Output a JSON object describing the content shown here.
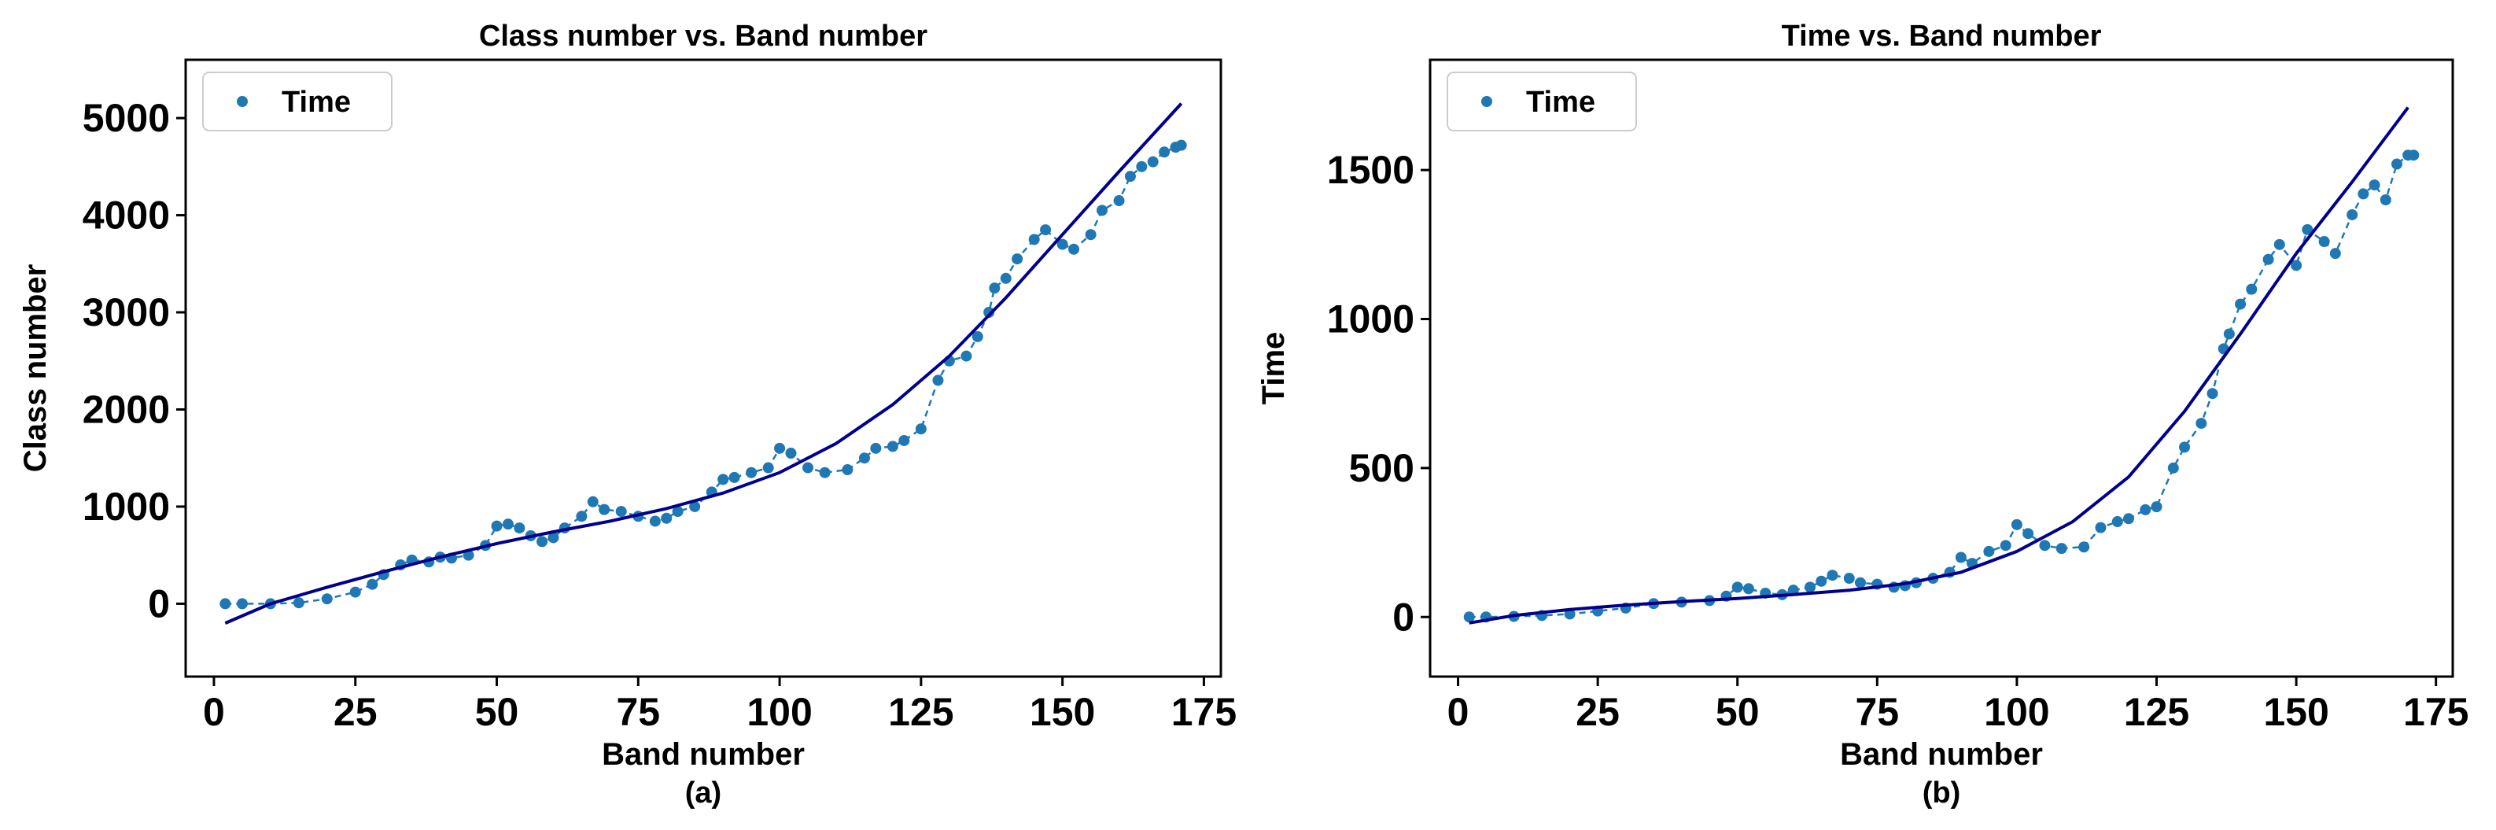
{
  "chart_data": [
    {
      "type": "scatter",
      "title": "Class number vs. Band number",
      "xlabel": "Band number",
      "ylabel": "Class number",
      "caption": "(a)",
      "xlim": [
        -5,
        178
      ],
      "ylim": [
        -750,
        5600
      ],
      "xticks": [
        0,
        25,
        50,
        75,
        100,
        125,
        150,
        175
      ],
      "yticks": [
        0,
        1000,
        2000,
        3000,
        4000,
        5000
      ],
      "legend": {
        "label": "Time",
        "placement": "top-left"
      },
      "colors": {
        "points": "#1f77b4",
        "fit": "#00008b"
      },
      "series": [
        {
          "name": "Time",
          "kind": "scatter",
          "points": [
            [
              2,
              0
            ],
            [
              5,
              0
            ],
            [
              10,
              0
            ],
            [
              15,
              10
            ],
            [
              20,
              50
            ],
            [
              25,
              120
            ],
            [
              28,
              200
            ],
            [
              30,
              300
            ],
            [
              33,
              400
            ],
            [
              35,
              450
            ],
            [
              38,
              430
            ],
            [
              40,
              480
            ],
            [
              42,
              470
            ],
            [
              45,
              500
            ],
            [
              48,
              600
            ],
            [
              50,
              800
            ],
            [
              52,
              820
            ],
            [
              54,
              780
            ],
            [
              56,
              700
            ],
            [
              58,
              640
            ],
            [
              60,
              680
            ],
            [
              62,
              780
            ],
            [
              65,
              900
            ],
            [
              67,
              1050
            ],
            [
              69,
              970
            ],
            [
              72,
              950
            ],
            [
              75,
              900
            ],
            [
              78,
              850
            ],
            [
              80,
              880
            ],
            [
              82,
              950
            ],
            [
              85,
              1000
            ],
            [
              88,
              1150
            ],
            [
              90,
              1280
            ],
            [
              92,
              1300
            ],
            [
              95,
              1350
            ],
            [
              98,
              1400
            ],
            [
              100,
              1600
            ],
            [
              102,
              1550
            ],
            [
              105,
              1400
            ],
            [
              108,
              1350
            ],
            [
              112,
              1380
            ],
            [
              115,
              1500
            ],
            [
              117,
              1600
            ],
            [
              120,
              1620
            ],
            [
              122,
              1680
            ],
            [
              125,
              1800
            ],
            [
              128,
              2300
            ],
            [
              130,
              2500
            ],
            [
              133,
              2550
            ],
            [
              135,
              2750
            ],
            [
              137,
              3000
            ],
            [
              138,
              3250
            ],
            [
              140,
              3350
            ],
            [
              142,
              3550
            ],
            [
              145,
              3750
            ],
            [
              147,
              3850
            ],
            [
              150,
              3700
            ],
            [
              152,
              3650
            ],
            [
              155,
              3800
            ],
            [
              157,
              4050
            ],
            [
              160,
              4150
            ],
            [
              162,
              4400
            ],
            [
              164,
              4500
            ],
            [
              166,
              4550
            ],
            [
              168,
              4650
            ],
            [
              170,
              4700
            ],
            [
              171,
              4720
            ]
          ]
        },
        {
          "name": "",
          "kind": "fit",
          "points": [
            [
              2,
              -200
            ],
            [
              10,
              0
            ],
            [
              20,
              170
            ],
            [
              30,
              330
            ],
            [
              40,
              480
            ],
            [
              50,
              620
            ],
            [
              60,
              740
            ],
            [
              70,
              850
            ],
            [
              80,
              980
            ],
            [
              90,
              1140
            ],
            [
              100,
              1350
            ],
            [
              110,
              1650
            ],
            [
              120,
              2050
            ],
            [
              130,
              2550
            ],
            [
              140,
              3150
            ],
            [
              150,
              3800
            ],
            [
              160,
              4450
            ],
            [
              171,
              5150
            ]
          ]
        }
      ]
    },
    {
      "type": "scatter",
      "title": "Time vs. Band number",
      "xlabel": "Band number",
      "ylabel": "Time",
      "caption": "(b)",
      "xlim": [
        -5,
        178
      ],
      "ylim": [
        -200,
        1870
      ],
      "xticks": [
        0,
        25,
        50,
        75,
        100,
        125,
        150,
        175
      ],
      "yticks": [
        0,
        500,
        1000,
        1500
      ],
      "legend": {
        "label": "Time",
        "placement": "top-left"
      },
      "colors": {
        "points": "#1f77b4",
        "fit": "#00008b"
      },
      "series": [
        {
          "name": "Time",
          "kind": "scatter",
          "points": [
            [
              2,
              0
            ],
            [
              5,
              0
            ],
            [
              10,
              2
            ],
            [
              15,
              5
            ],
            [
              20,
              10
            ],
            [
              25,
              20
            ],
            [
              30,
              30
            ],
            [
              35,
              45
            ],
            [
              40,
              50
            ],
            [
              45,
              55
            ],
            [
              48,
              70
            ],
            [
              50,
              100
            ],
            [
              52,
              95
            ],
            [
              55,
              80
            ],
            [
              58,
              75
            ],
            [
              60,
              90
            ],
            [
              63,
              100
            ],
            [
              65,
              120
            ],
            [
              67,
              140
            ],
            [
              70,
              130
            ],
            [
              72,
              115
            ],
            [
              75,
              110
            ],
            [
              78,
              100
            ],
            [
              80,
              105
            ],
            [
              82,
              115
            ],
            [
              85,
              130
            ],
            [
              88,
              150
            ],
            [
              90,
              200
            ],
            [
              92,
              180
            ],
            [
              95,
              220
            ],
            [
              98,
              240
            ],
            [
              100,
              310
            ],
            [
              102,
              280
            ],
            [
              105,
              240
            ],
            [
              108,
              230
            ],
            [
              112,
              235
            ],
            [
              115,
              300
            ],
            [
              118,
              320
            ],
            [
              120,
              330
            ],
            [
              123,
              360
            ],
            [
              125,
              370
            ],
            [
              128,
              500
            ],
            [
              130,
              570
            ],
            [
              133,
              650
            ],
            [
              135,
              750
            ],
            [
              137,
              900
            ],
            [
              138,
              950
            ],
            [
              140,
              1050
            ],
            [
              142,
              1100
            ],
            [
              145,
              1200
            ],
            [
              147,
              1250
            ],
            [
              150,
              1180
            ],
            [
              152,
              1300
            ],
            [
              155,
              1260
            ],
            [
              157,
              1220
            ],
            [
              160,
              1350
            ],
            [
              162,
              1420
            ],
            [
              164,
              1450
            ],
            [
              166,
              1400
            ],
            [
              168,
              1520
            ],
            [
              170,
              1550
            ],
            [
              171,
              1550
            ]
          ]
        },
        {
          "name": "",
          "kind": "fit",
          "points": [
            [
              2,
              -20
            ],
            [
              10,
              5
            ],
            [
              20,
              25
            ],
            [
              30,
              40
            ],
            [
              40,
              52
            ],
            [
              50,
              62
            ],
            [
              60,
              75
            ],
            [
              70,
              90
            ],
            [
              80,
              112
            ],
            [
              90,
              150
            ],
            [
              100,
              220
            ],
            [
              110,
              320
            ],
            [
              120,
              470
            ],
            [
              130,
              690
            ],
            [
              140,
              950
            ],
            [
              150,
              1220
            ],
            [
              160,
              1460
            ],
            [
              170,
              1710
            ]
          ]
        }
      ]
    }
  ]
}
